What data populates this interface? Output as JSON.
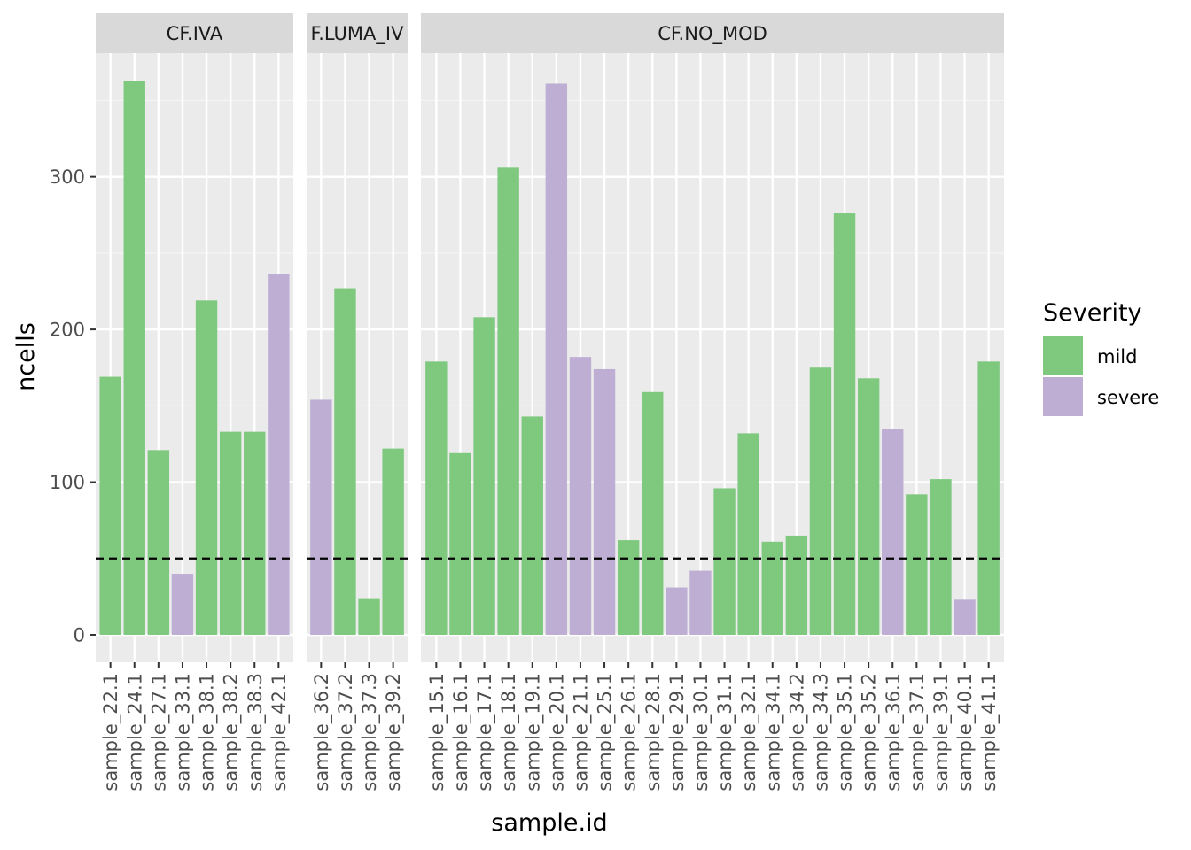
{
  "chart_data": {
    "type": "bar",
    "xlabel": "sample.id",
    "ylabel": "ncells",
    "ylim": [
      0,
      380
    ],
    "yticks": [
      0,
      100,
      200,
      300
    ],
    "hline": {
      "value": 50,
      "style": "dashed"
    },
    "legend": {
      "title": "Severity",
      "position": "right",
      "items": [
        {
          "label": "mild",
          "color": "#7FC97F"
        },
        {
          "label": "severe",
          "color": "#BEAED4"
        }
      ]
    },
    "panels": [
      {
        "label": "CF.IVA",
        "display_label": "CF.IVA",
        "bars": [
          {
            "id": "sample_22.1",
            "value": 169,
            "severity": "mild"
          },
          {
            "id": "sample_24.1",
            "value": 363,
            "severity": "mild"
          },
          {
            "id": "sample_27.1",
            "value": 121,
            "severity": "mild"
          },
          {
            "id": "sample_33.1",
            "value": 40,
            "severity": "severe"
          },
          {
            "id": "sample_38.1",
            "value": 219,
            "severity": "mild"
          },
          {
            "id": "sample_38.2",
            "value": 133,
            "severity": "mild"
          },
          {
            "id": "sample_38.3",
            "value": 133,
            "severity": "mild"
          },
          {
            "id": "sample_42.1",
            "value": 236,
            "severity": "severe"
          }
        ]
      },
      {
        "label": "CF.LUMA_IVA",
        "display_label": "F.LUMA_IV",
        "bars": [
          {
            "id": "sample_36.2",
            "value": 154,
            "severity": "severe"
          },
          {
            "id": "sample_37.2",
            "value": 227,
            "severity": "mild"
          },
          {
            "id": "sample_37.3",
            "value": 24,
            "severity": "mild"
          },
          {
            "id": "sample_39.2",
            "value": 122,
            "severity": "mild"
          }
        ]
      },
      {
        "label": "CF.NO_MOD",
        "display_label": "CF.NO_MOD",
        "bars": [
          {
            "id": "sample_15.1",
            "value": 179,
            "severity": "mild"
          },
          {
            "id": "sample_16.1",
            "value": 119,
            "severity": "mild"
          },
          {
            "id": "sample_17.1",
            "value": 208,
            "severity": "mild"
          },
          {
            "id": "sample_18.1",
            "value": 306,
            "severity": "mild"
          },
          {
            "id": "sample_19.1",
            "value": 143,
            "severity": "mild"
          },
          {
            "id": "sample_20.1",
            "value": 361,
            "severity": "severe"
          },
          {
            "id": "sample_21.1",
            "value": 182,
            "severity": "severe"
          },
          {
            "id": "sample_25.1",
            "value": 174,
            "severity": "severe"
          },
          {
            "id": "sample_26.1",
            "value": 62,
            "severity": "mild"
          },
          {
            "id": "sample_28.1",
            "value": 159,
            "severity": "mild"
          },
          {
            "id": "sample_29.1",
            "value": 31,
            "severity": "severe"
          },
          {
            "id": "sample_30.1",
            "value": 42,
            "severity": "severe"
          },
          {
            "id": "sample_31.1",
            "value": 96,
            "severity": "mild"
          },
          {
            "id": "sample_32.1",
            "value": 132,
            "severity": "mild"
          },
          {
            "id": "sample_34.1",
            "value": 61,
            "severity": "mild"
          },
          {
            "id": "sample_34.2",
            "value": 65,
            "severity": "mild"
          },
          {
            "id": "sample_34.3",
            "value": 175,
            "severity": "mild"
          },
          {
            "id": "sample_35.1",
            "value": 276,
            "severity": "mild"
          },
          {
            "id": "sample_35.2",
            "value": 168,
            "severity": "mild"
          },
          {
            "id": "sample_36.1",
            "value": 135,
            "severity": "severe"
          },
          {
            "id": "sample_37.1",
            "value": 92,
            "severity": "mild"
          },
          {
            "id": "sample_39.1",
            "value": 102,
            "severity": "mild"
          },
          {
            "id": "sample_40.1",
            "value": 23,
            "severity": "severe"
          },
          {
            "id": "sample_41.1",
            "value": 179,
            "severity": "mild"
          }
        ]
      }
    ]
  }
}
